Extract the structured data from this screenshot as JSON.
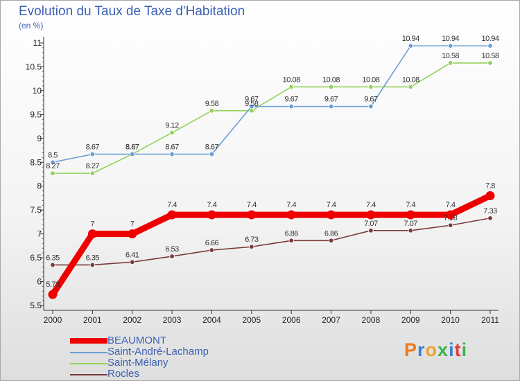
{
  "page": {
    "title": "Evolution du Taux de Taxe d'Habitation",
    "subtitle": "(en %)",
    "logo": "Proxiti"
  },
  "colors": {
    "title": "#3b5fb4",
    "axis": "#333333",
    "logo_letters": [
      "#ef7b17",
      "#3a7fd0",
      "#f0a22a",
      "#3bb34a",
      "#3a7fd0",
      "#e23b3b",
      "#3bb34a"
    ]
  },
  "chart_data": {
    "type": "line",
    "title": "Evolution du Taux de Taxe d'Habitation",
    "ylabel": "(en %)",
    "xlabel": "",
    "x": [
      2000,
      2001,
      2002,
      2003,
      2004,
      2005,
      2006,
      2007,
      2008,
      2009,
      2010,
      2011
    ],
    "ylim": [
      5.5,
      11
    ],
    "yticks": [
      5.5,
      6,
      6.5,
      7,
      7.5,
      8,
      8.5,
      9,
      9.5,
      10,
      10.5,
      11
    ],
    "ytick_labels": [
      "5.5",
      "6",
      "6.5",
      "7",
      "7.5",
      "8",
      "8.5",
      "9",
      "9.5",
      "10",
      "10.5",
      "11"
    ],
    "grid": false,
    "legend_position": "bottom-left",
    "series": [
      {
        "name": "BEAUMONT",
        "color": "#ee0000",
        "values": [
          5.73,
          7,
          7,
          7.4,
          7.4,
          7.4,
          7.4,
          7.4,
          7.4,
          7.4,
          7.4,
          7.8
        ],
        "labels": [
          "5.73",
          "7",
          "7",
          "7.4",
          "7.4",
          "7.4",
          "7.4",
          "7.4",
          "7.4",
          "7.4",
          "7.4",
          "7.8"
        ]
      },
      {
        "name": "Saint-André-Lachamp",
        "color": "#6a9fd4",
        "values": [
          8.5,
          8.67,
          8.67,
          8.67,
          8.67,
          9.67,
          9.67,
          9.67,
          9.67,
          10.94,
          10.94,
          10.94
        ],
        "labels": [
          "8.5",
          "8.67",
          "8.67",
          "8.67",
          "8.67",
          "9.67",
          "9.67",
          "9.67",
          "9.67",
          "10.94",
          "10.94",
          "10.94"
        ]
      },
      {
        "name": "Saint-Mélany",
        "color": "#92d25a",
        "values": [
          8.27,
          8.27,
          8.67,
          9.12,
          9.58,
          9.58,
          10.08,
          10.08,
          10.08,
          10.08,
          10.58,
          10.58
        ],
        "labels": [
          "8.27",
          "8.27",
          "8.67",
          "9.12",
          "9.58",
          "9.58",
          "10.08",
          "10.08",
          "10.08",
          "10.08",
          "10.58",
          "10.58"
        ]
      },
      {
        "name": "Rocles",
        "color": "#7a3a3a",
        "values": [
          6.35,
          6.35,
          6.41,
          6.53,
          6.66,
          6.73,
          6.86,
          6.86,
          7.07,
          7.07,
          7.18,
          7.33
        ],
        "labels": [
          "6.35",
          "6.35",
          "6.41",
          "6.53",
          "6.66",
          "6.73",
          "6.86",
          "6.86",
          "7.07",
          "7.07",
          "7.18",
          "7.33"
        ]
      }
    ]
  }
}
